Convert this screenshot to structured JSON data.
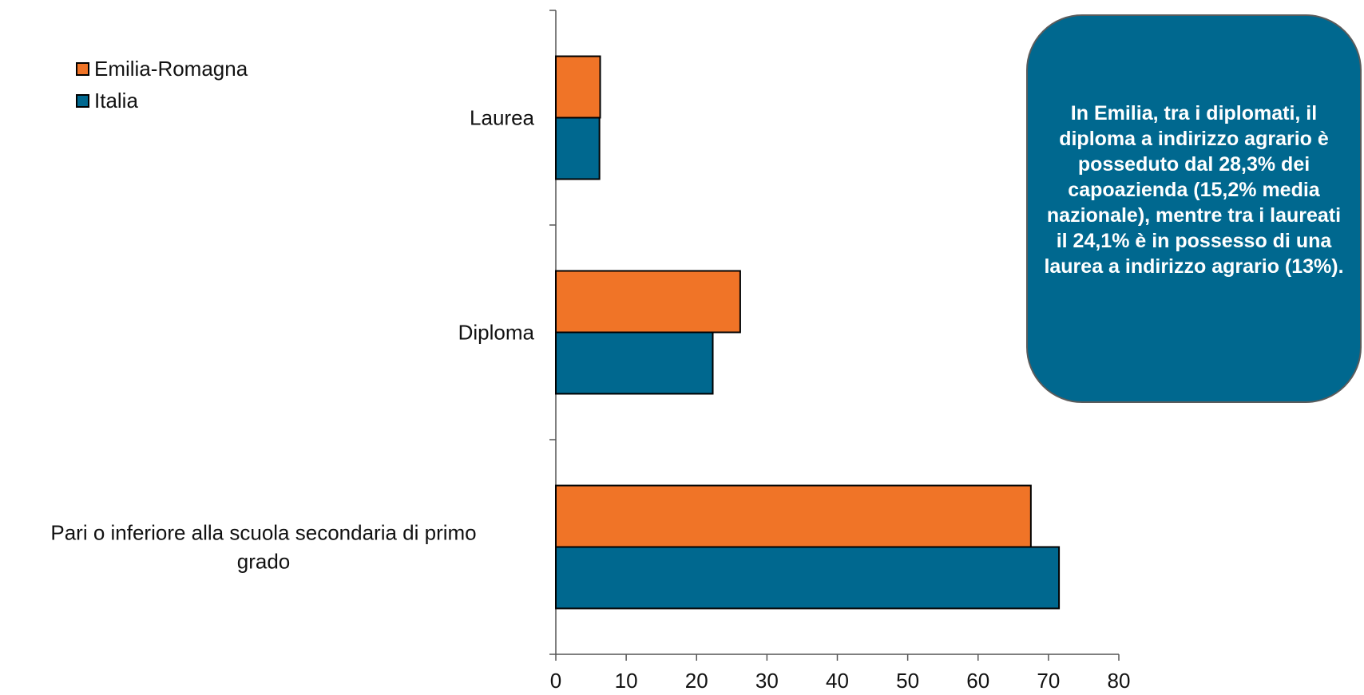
{
  "chart_data": {
    "type": "bar",
    "orientation": "horizontal",
    "categories": [
      "Laurea",
      "Diploma",
      "Pari o inferiore alla scuola secondaria di primo grado"
    ],
    "series": [
      {
        "name": "Emilia-Romagna",
        "color": "#f07427",
        "values": [
          6.3,
          26.2,
          67.5
        ]
      },
      {
        "name": "Italia",
        "color": "#00688f",
        "values": [
          6.2,
          22.3,
          71.5
        ]
      }
    ],
    "xlim": [
      0,
      80
    ],
    "xticks": [
      "0",
      "10",
      "20",
      "30",
      "40",
      "50",
      "60",
      "70",
      "80"
    ],
    "grid": false,
    "legend_position": "top-left"
  },
  "callout": {
    "text": "In Emilia, tra i diplomati, il diploma a indirizzo agrario è posseduto  dal 28,3% dei capoazienda (15,2% media nazionale), mentre tra i laureati il 24,1% è in possesso di una laurea a indirizzo agrario (13%)."
  }
}
